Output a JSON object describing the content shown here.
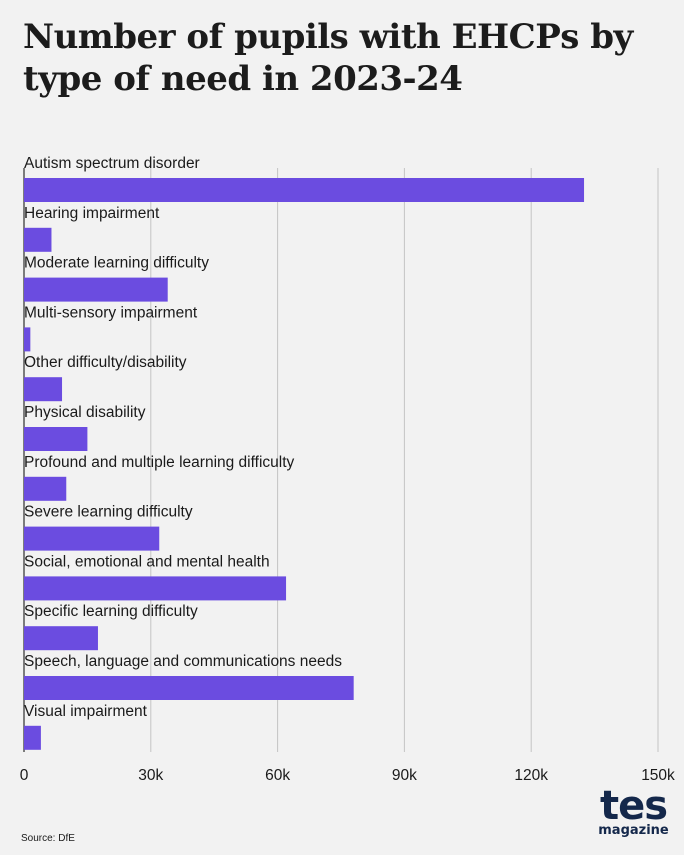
{
  "title": "Number of pupils with EHCPs by type of need in 2023-24",
  "source": "Source: DfE",
  "logo": {
    "main": "tes",
    "sub": "magazine"
  },
  "colors": {
    "bar": "#6b4ce0",
    "grid": "#c4c4c4",
    "background": "#f2f2f2",
    "logo": "#14284b"
  },
  "chart_data": {
    "type": "bar",
    "orientation": "horizontal",
    "categories": [
      "Autism spectrum disorder",
      "Hearing impairment",
      "Moderate learning difficulty",
      "Multi-sensory impairment",
      "Other difficulty/disability",
      "Physical disability",
      "Profound and multiple learning difficulty",
      "Severe learning difficulty",
      "Social, emotional and mental health",
      "Specific learning difficulty",
      "Speech, language and communications needs",
      "Visual impairment"
    ],
    "values": [
      132500,
      6500,
      34000,
      1500,
      9000,
      15000,
      10000,
      32000,
      62000,
      17500,
      78000,
      4000
    ],
    "xlim": [
      0,
      150000
    ],
    "ticks": [
      0,
      30000,
      60000,
      90000,
      120000,
      150000
    ],
    "tick_labels": [
      "0",
      "30k",
      "60k",
      "90k",
      "120k",
      "150k"
    ],
    "grid": true,
    "legend": "none"
  }
}
